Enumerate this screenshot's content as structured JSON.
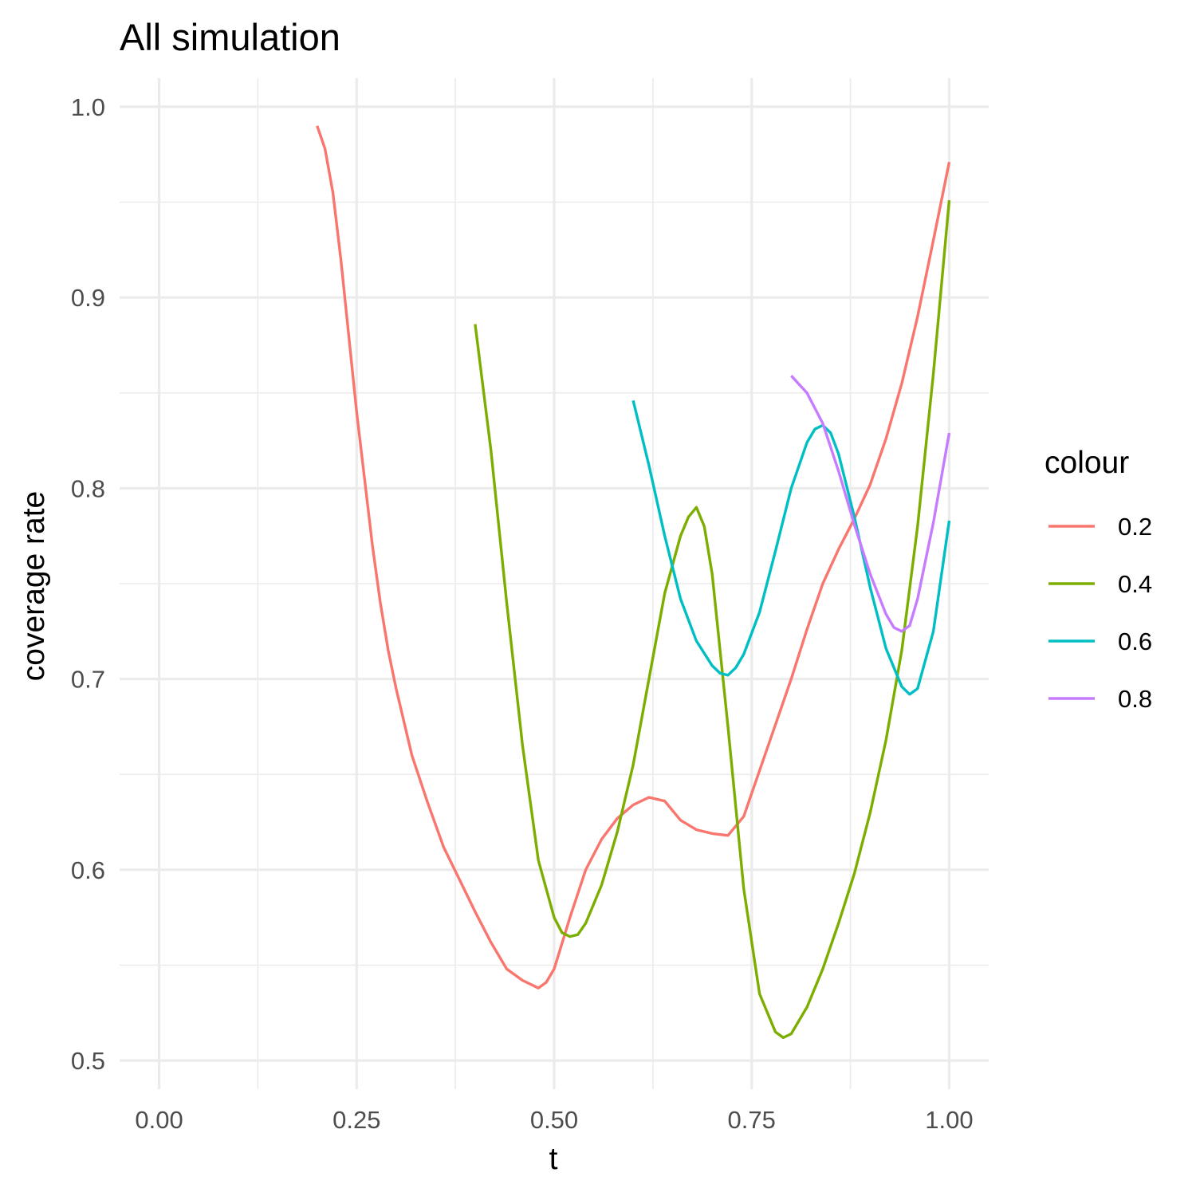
{
  "chart_data": {
    "type": "line",
    "title": "All simulation",
    "xlabel": "t",
    "ylabel": "coverage rate",
    "xlim": [
      -0.05,
      1.05
    ],
    "ylim": [
      0.485,
      1.015
    ],
    "x_ticks": [
      "0.00",
      "0.25",
      "0.50",
      "0.75",
      "1.00"
    ],
    "y_ticks": [
      "0.5",
      "0.6",
      "0.7",
      "0.8",
      "0.9",
      "1.0"
    ],
    "grid": true,
    "legend": {
      "title": "colour",
      "position": "right"
    },
    "series": [
      {
        "name": "0.2",
        "color": "#F8766D",
        "x": [
          0.2,
          0.21,
          0.22,
          0.23,
          0.24,
          0.25,
          0.26,
          0.27,
          0.28,
          0.29,
          0.3,
          0.32,
          0.34,
          0.36,
          0.38,
          0.4,
          0.42,
          0.44,
          0.46,
          0.47,
          0.48,
          0.49,
          0.5,
          0.52,
          0.54,
          0.56,
          0.58,
          0.6,
          0.62,
          0.64,
          0.66,
          0.68,
          0.7,
          0.72,
          0.74,
          0.76,
          0.78,
          0.8,
          0.82,
          0.84,
          0.86,
          0.88,
          0.9,
          0.92,
          0.94,
          0.96,
          0.98,
          1.0
        ],
        "values": [
          0.99,
          0.978,
          0.955,
          0.92,
          0.88,
          0.84,
          0.805,
          0.77,
          0.74,
          0.715,
          0.695,
          0.66,
          0.635,
          0.612,
          0.595,
          0.578,
          0.562,
          0.548,
          0.542,
          0.54,
          0.538,
          0.541,
          0.548,
          0.575,
          0.6,
          0.616,
          0.627,
          0.634,
          0.638,
          0.636,
          0.626,
          0.621,
          0.619,
          0.618,
          0.628,
          0.652,
          0.676,
          0.7,
          0.726,
          0.75,
          0.768,
          0.784,
          0.802,
          0.826,
          0.855,
          0.89,
          0.93,
          0.971
        ]
      },
      {
        "name": "0.4",
        "color": "#7CAE00",
        "x": [
          0.4,
          0.42,
          0.44,
          0.46,
          0.48,
          0.5,
          0.51,
          0.52,
          0.53,
          0.54,
          0.56,
          0.58,
          0.6,
          0.62,
          0.64,
          0.66,
          0.67,
          0.68,
          0.69,
          0.7,
          0.72,
          0.74,
          0.76,
          0.78,
          0.79,
          0.8,
          0.82,
          0.84,
          0.86,
          0.88,
          0.9,
          0.92,
          0.94,
          0.96,
          0.98,
          1.0
        ],
        "values": [
          0.886,
          0.82,
          0.74,
          0.665,
          0.605,
          0.575,
          0.567,
          0.565,
          0.566,
          0.572,
          0.592,
          0.62,
          0.655,
          0.7,
          0.745,
          0.775,
          0.785,
          0.79,
          0.78,
          0.755,
          0.675,
          0.59,
          0.535,
          0.515,
          0.512,
          0.514,
          0.528,
          0.548,
          0.572,
          0.598,
          0.63,
          0.668,
          0.715,
          0.78,
          0.86,
          0.951
        ]
      },
      {
        "name": "0.6",
        "color": "#00BFC4",
        "x": [
          0.6,
          0.62,
          0.64,
          0.66,
          0.68,
          0.7,
          0.71,
          0.72,
          0.73,
          0.74,
          0.76,
          0.78,
          0.8,
          0.82,
          0.83,
          0.84,
          0.85,
          0.86,
          0.88,
          0.9,
          0.92,
          0.94,
          0.95,
          0.96,
          0.98,
          1.0
        ],
        "values": [
          0.846,
          0.812,
          0.775,
          0.742,
          0.72,
          0.707,
          0.703,
          0.702,
          0.706,
          0.713,
          0.735,
          0.767,
          0.8,
          0.824,
          0.831,
          0.833,
          0.829,
          0.818,
          0.785,
          0.748,
          0.716,
          0.696,
          0.692,
          0.695,
          0.725,
          0.783
        ]
      },
      {
        "name": "0.8",
        "color": "#C77CFF",
        "x": [
          0.8,
          0.82,
          0.84,
          0.86,
          0.88,
          0.9,
          0.92,
          0.93,
          0.94,
          0.95,
          0.96,
          0.98,
          1.0
        ],
        "values": [
          0.859,
          0.85,
          0.834,
          0.809,
          0.781,
          0.755,
          0.734,
          0.727,
          0.725,
          0.728,
          0.742,
          0.782,
          0.829
        ]
      }
    ]
  }
}
